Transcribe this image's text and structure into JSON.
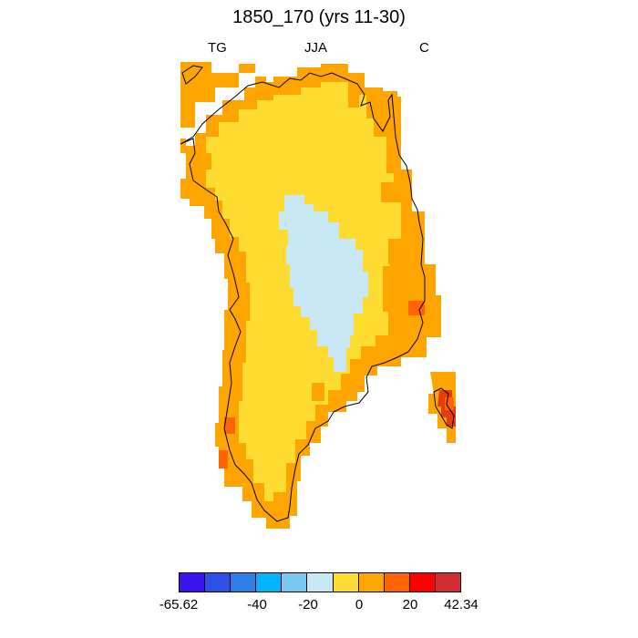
{
  "title": "1850_170 (yrs 11-30)",
  "header": {
    "left": "TG",
    "center": "JJA",
    "right": "C"
  },
  "colorbar": {
    "colors": [
      "#3c14f0",
      "#2d50e6",
      "#2d7deb",
      "#00b4ff",
      "#78c8f0",
      "#c8e8f6",
      "#ffdc32",
      "#ffa500",
      "#ff6400",
      "#ff0000",
      "#d22d32"
    ],
    "labels": [
      "-65.62",
      "-40",
      "-20",
      "0",
      "20",
      "42.34"
    ]
  },
  "map": {
    "region": "Greenland",
    "fill_colors": {
      "coast_warm": "#ffa500",
      "interior": "#ffdc32",
      "summit": "#c8e8f6",
      "hot": "#ff6400",
      "hottest": "#e63c14"
    }
  }
}
